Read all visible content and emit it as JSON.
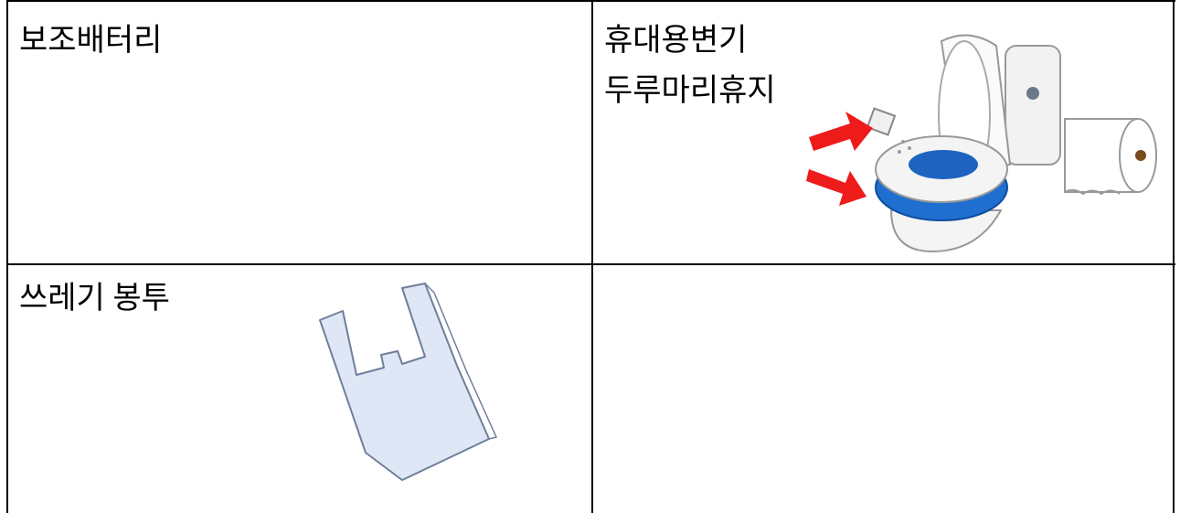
{
  "table": {
    "rows": [
      [
        {
          "lines": [
            "보조배터리"
          ]
        },
        {
          "lines": [
            "휴대용변기",
            "두루마리휴지"
          ]
        }
      ],
      [
        {
          "lines": [
            "쓰레기 봉투"
          ]
        }
      ]
    ]
  }
}
